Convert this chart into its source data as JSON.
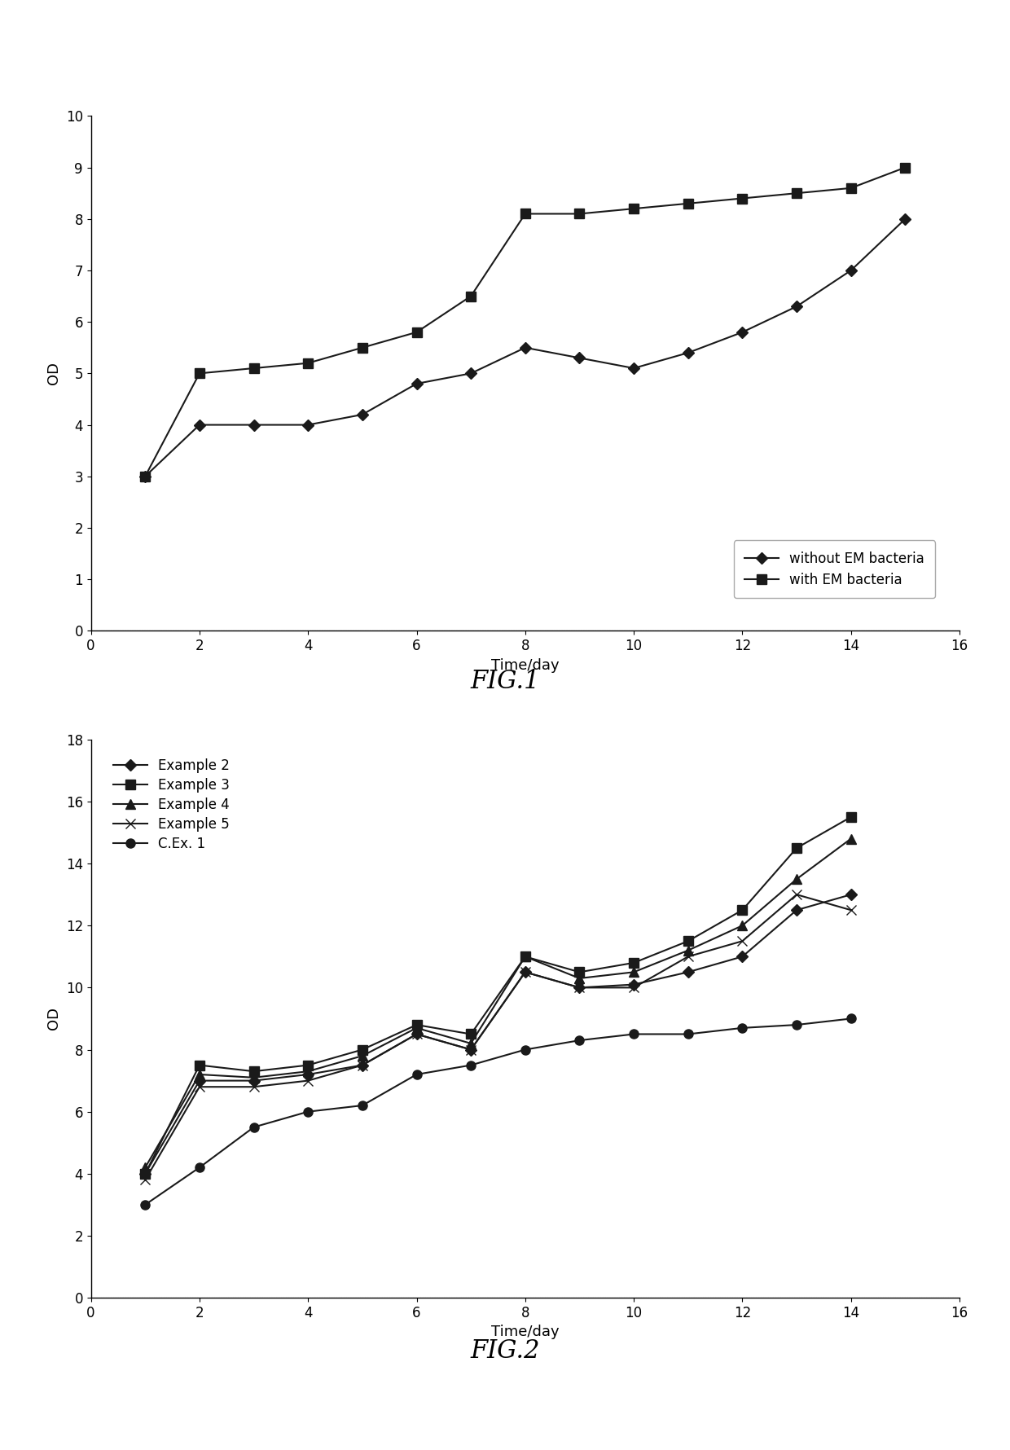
{
  "fig1": {
    "title": "FIG.1",
    "xlabel": "Time/day",
    "ylabel": "OD",
    "xlim": [
      0,
      16
    ],
    "ylim": [
      0,
      10
    ],
    "xticks": [
      0,
      2,
      4,
      6,
      8,
      10,
      12,
      14,
      16
    ],
    "yticks": [
      0,
      1,
      2,
      3,
      4,
      5,
      6,
      7,
      8,
      9,
      10
    ],
    "series": [
      {
        "label": "without EM bacteria",
        "x": [
          1,
          2,
          3,
          4,
          5,
          6,
          7,
          8,
          9,
          10,
          11,
          12,
          13,
          14,
          15
        ],
        "y": [
          3.0,
          4.0,
          4.0,
          4.0,
          4.2,
          4.8,
          5.0,
          5.5,
          5.3,
          5.1,
          5.4,
          5.8,
          6.3,
          7.0,
          8.0
        ],
        "marker": "D",
        "color": "#1a1a1a",
        "markersize": 7,
        "linewidth": 1.5
      },
      {
        "label": "with EM bacteria",
        "x": [
          1,
          2,
          3,
          4,
          5,
          6,
          7,
          8,
          9,
          10,
          11,
          12,
          13,
          14,
          15
        ],
        "y": [
          3.0,
          5.0,
          5.1,
          5.2,
          5.5,
          5.8,
          6.5,
          8.1,
          8.1,
          8.2,
          8.3,
          8.4,
          8.5,
          8.6,
          9.0
        ],
        "marker": "s",
        "color": "#1a1a1a",
        "markersize": 8,
        "linewidth": 1.5
      }
    ]
  },
  "fig2": {
    "title": "FIG.2",
    "xlabel": "Time/day",
    "ylabel": "OD",
    "xlim": [
      0,
      16
    ],
    "ylim": [
      0,
      18
    ],
    "xticks": [
      0,
      2,
      4,
      6,
      8,
      10,
      12,
      14,
      16
    ],
    "yticks": [
      0,
      2,
      4,
      6,
      8,
      10,
      12,
      14,
      16,
      18
    ],
    "series": [
      {
        "label": "Example 2",
        "x": [
          1,
          2,
          3,
          4,
          5,
          6,
          7,
          8,
          9,
          10,
          11,
          12,
          13,
          14
        ],
        "y": [
          4.0,
          7.0,
          7.0,
          7.2,
          7.5,
          8.5,
          8.0,
          10.5,
          10.0,
          10.1,
          10.5,
          11.0,
          12.5,
          13.0
        ],
        "marker": "D",
        "color": "#1a1a1a",
        "markersize": 7,
        "linewidth": 1.5
      },
      {
        "label": "Example 3",
        "x": [
          1,
          2,
          3,
          4,
          5,
          6,
          7,
          8,
          9,
          10,
          11,
          12,
          13,
          14
        ],
        "y": [
          4.0,
          7.5,
          7.3,
          7.5,
          8.0,
          8.8,
          8.5,
          11.0,
          10.5,
          10.8,
          11.5,
          12.5,
          14.5,
          15.5
        ],
        "marker": "s",
        "color": "#1a1a1a",
        "markersize": 8,
        "linewidth": 1.5
      },
      {
        "label": "Example 4",
        "x": [
          1,
          2,
          3,
          4,
          5,
          6,
          7,
          8,
          9,
          10,
          11,
          12,
          13,
          14
        ],
        "y": [
          4.2,
          7.2,
          7.1,
          7.3,
          7.8,
          8.7,
          8.2,
          11.0,
          10.3,
          10.5,
          11.2,
          12.0,
          13.5,
          14.8
        ],
        "marker": "^",
        "color": "#1a1a1a",
        "markersize": 8,
        "linewidth": 1.5
      },
      {
        "label": "Example 5",
        "x": [
          1,
          2,
          3,
          4,
          5,
          6,
          7,
          8,
          9,
          10,
          11,
          12,
          13,
          14
        ],
        "y": [
          3.8,
          6.8,
          6.8,
          7.0,
          7.5,
          8.5,
          8.0,
          10.5,
          10.0,
          10.0,
          11.0,
          11.5,
          13.0,
          12.5
        ],
        "marker": "x",
        "color": "#1a1a1a",
        "markersize": 9,
        "linewidth": 1.5
      },
      {
        "label": "C.Ex. 1",
        "x": [
          1,
          2,
          3,
          4,
          5,
          6,
          7,
          8,
          9,
          10,
          11,
          12,
          13,
          14
        ],
        "y": [
          3.0,
          4.2,
          5.5,
          6.0,
          6.2,
          7.2,
          7.5,
          8.0,
          8.3,
          8.5,
          8.5,
          8.7,
          8.8,
          9.0
        ],
        "marker": "o",
        "color": "#1a1a1a",
        "markersize": 8,
        "linewidth": 1.5
      }
    ]
  },
  "background_color": "#ffffff",
  "font_color": "#000000",
  "fig_title_fontsize": 22,
  "axis_label_fontsize": 13,
  "tick_label_fontsize": 12,
  "legend_fontsize": 12
}
